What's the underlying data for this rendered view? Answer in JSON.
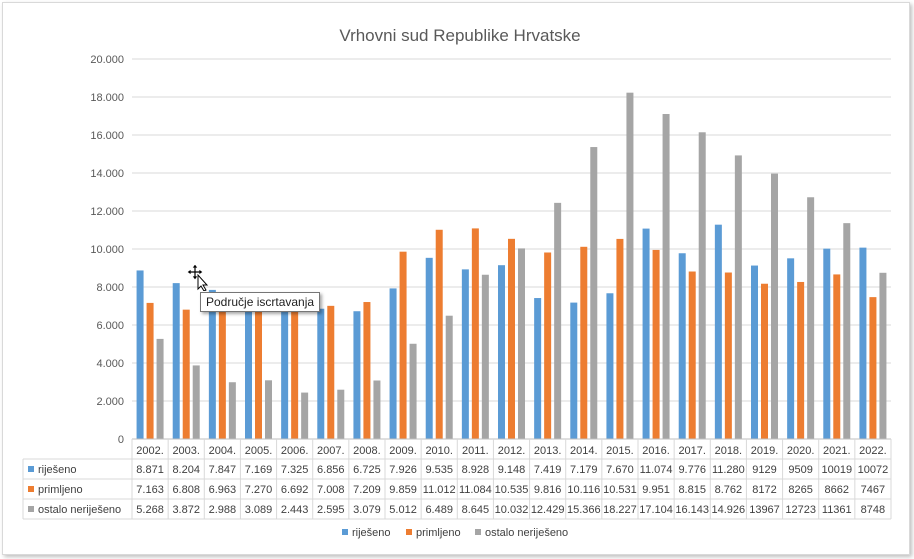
{
  "chart_data": {
    "type": "bar",
    "title": "Vrhovni sud Republike Hrvatske",
    "categories": [
      "2002.",
      "2003.",
      "2004.",
      "2005.",
      "2006.",
      "2007.",
      "2008.",
      "2009.",
      "2010.",
      "2011.",
      "2012.",
      "2013.",
      "2014.",
      "2015.",
      "2016.",
      "2017.",
      "2018.",
      "2019.",
      "2020.",
      "2021.",
      "2022."
    ],
    "ylim": [
      0,
      20000
    ],
    "yticks": [
      "0",
      "2.000",
      "4.000",
      "6.000",
      "8.000",
      "10.000",
      "12.000",
      "14.000",
      "16.000",
      "18.000",
      "20.000"
    ],
    "grid": true,
    "legend_position": "bottom",
    "series": [
      {
        "name": "riješeno",
        "color": "#5b9bd5",
        "values": [
          8871,
          8204,
          7847,
          7169,
          7325,
          6856,
          6725,
          7926,
          9535,
          8928,
          9148,
          7419,
          7179,
          7670,
          11074,
          9776,
          11280,
          9129,
          9509,
          10019,
          10072
        ],
        "labels": [
          "8.871",
          "8.204",
          "7.847",
          "7.169",
          "7.325",
          "6.856",
          "6.725",
          "7.926",
          "9.535",
          "8.928",
          "9.148",
          "7.419",
          "7.179",
          "7.670",
          "11.074",
          "9.776",
          "11.280",
          "9129",
          "9509",
          "10019",
          "10072"
        ]
      },
      {
        "name": "primljeno",
        "color": "#ed7d31",
        "values": [
          7163,
          6808,
          6963,
          7270,
          6692,
          7008,
          7209,
          9859,
          11012,
          11084,
          10535,
          9816,
          10116,
          10531,
          9951,
          8815,
          8762,
          8172,
          8265,
          8662,
          7467
        ],
        "labels": [
          "7.163",
          "6.808",
          "6.963",
          "7.270",
          "6.692",
          "7.008",
          "7.209",
          "9.859",
          "11.012",
          "11.084",
          "10.535",
          "9.816",
          "10.116",
          "10.531",
          "9.951",
          "8.815",
          "8.762",
          "8172",
          "8265",
          "8662",
          "7467"
        ]
      },
      {
        "name": "ostalo neriješeno",
        "color": "#a5a5a5",
        "values": [
          5268,
          3872,
          2988,
          3089,
          2443,
          2595,
          3079,
          5012,
          6489,
          8645,
          10032,
          12429,
          15366,
          18227,
          17104,
          16143,
          14926,
          13967,
          12723,
          11361,
          8748
        ],
        "labels": [
          "5.268",
          "3.872",
          "2.988",
          "3.089",
          "2.443",
          "2.595",
          "3.079",
          "5.012",
          "6.489",
          "8.645",
          "10.032",
          "12.429",
          "15.366",
          "18.227",
          "17.104",
          "16.143",
          "14.926",
          "13967",
          "12723",
          "11361",
          "8748"
        ]
      }
    ]
  },
  "tooltip": {
    "text": "Područje iscrtavanja"
  }
}
